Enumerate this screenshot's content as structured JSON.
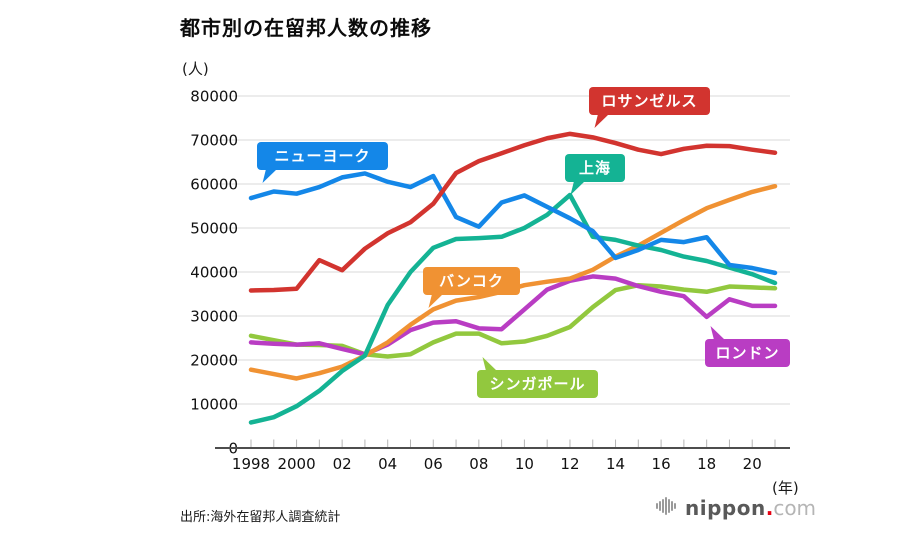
{
  "title": "都市別の在留邦人数の推移",
  "y_axis_unit": "(人)",
  "x_axis_unit": "(年)",
  "source": "出所:海外在留邦人調査統計",
  "logo": {
    "name": "nippon",
    "dot": ".",
    "tld": "com"
  },
  "chart_data": {
    "type": "line",
    "x": [
      1998,
      1999,
      2000,
      2001,
      2002,
      2003,
      2004,
      2005,
      2006,
      2007,
      2008,
      2009,
      2010,
      2011,
      2012,
      2013,
      2014,
      2015,
      2016,
      2017,
      2018,
      2019,
      2020,
      2021
    ],
    "x_tick_labels": [
      "1998",
      "2000",
      "02",
      "04",
      "06",
      "08",
      "10",
      "12",
      "14",
      "16",
      "18",
      "20"
    ],
    "y_ticks": [
      0,
      10000,
      20000,
      30000,
      40000,
      50000,
      60000,
      70000,
      80000
    ],
    "ylim": [
      0,
      80000
    ],
    "grid": true,
    "legend_position": "inline-callouts",
    "series": [
      {
        "name": "ロサンゼルス",
        "color": "#d2342f",
        "values": [
          35800,
          35900,
          36200,
          42700,
          40400,
          45300,
          48800,
          51300,
          55500,
          62500,
          65200,
          67000,
          68800,
          70400,
          71400,
          70600,
          69300,
          67800,
          66800,
          68000,
          68700,
          68600,
          67800,
          67100
        ]
      },
      {
        "name": "ニューヨーク",
        "color": "#1487e8",
        "values": [
          56800,
          58300,
          57800,
          59300,
          61500,
          62400,
          60500,
          59300,
          61800,
          52500,
          50300,
          55800,
          57400,
          54800,
          52200,
          49300,
          43200,
          45000,
          47300,
          46800,
          47900,
          41600,
          40900,
          39800
        ]
      },
      {
        "name": "上海",
        "color": "#14b394",
        "values": [
          5800,
          7000,
          9500,
          13000,
          17500,
          21000,
          32500,
          40000,
          45500,
          47500,
          47700,
          48000,
          50000,
          53000,
          57500,
          48000,
          47300,
          46000,
          45000,
          43500,
          42500,
          41000,
          39500,
          37500
        ]
      },
      {
        "name": "バンコク",
        "color": "#f09233",
        "values": [
          17800,
          16800,
          15800,
          17000,
          18500,
          21000,
          24000,
          28000,
          31500,
          33500,
          34300,
          35500,
          37000,
          37800,
          38500,
          40500,
          43500,
          46000,
          48900,
          51800,
          54500,
          56400,
          58200,
          59500
        ]
      },
      {
        "name": "シンガポール",
        "color": "#92c83e",
        "values": [
          25500,
          24500,
          23500,
          23400,
          23200,
          21300,
          20800,
          21300,
          24000,
          26000,
          26000,
          23800,
          24200,
          25500,
          27500,
          32000,
          35900,
          37000,
          36700,
          36000,
          35500,
          36700,
          36500,
          36300
        ]
      },
      {
        "name": "ロンドン",
        "color": "#b93dc3",
        "values": [
          24000,
          23700,
          23500,
          23800,
          22500,
          21300,
          23500,
          26800,
          28500,
          28800,
          27200,
          27000,
          31500,
          36000,
          38000,
          39000,
          38500,
          36800,
          35500,
          34500,
          29800,
          33800,
          32300,
          32300
        ]
      }
    ]
  }
}
